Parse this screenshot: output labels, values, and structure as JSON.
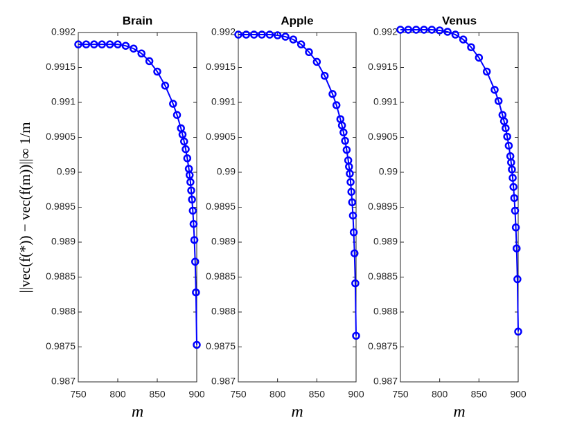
{
  "chart_data": [
    {
      "type": "line",
      "title": "Brain",
      "xlabel": "m",
      "ylabel": "||vec(f(*)) − vec(f(m))||∞ 1/m",
      "x": [
        750,
        760,
        770,
        780,
        790,
        800,
        810,
        820,
        830,
        840,
        850,
        860,
        870,
        875,
        880,
        882,
        884,
        886,
        888,
        890,
        891,
        892,
        893,
        894,
        895,
        896,
        897,
        898,
        899,
        900
      ],
      "values": [
        0.99183,
        0.99183,
        0.99183,
        0.99183,
        0.99183,
        0.99183,
        0.99181,
        0.99177,
        0.9917,
        0.99159,
        0.99144,
        0.99124,
        0.99098,
        0.99082,
        0.99063,
        0.99054,
        0.99044,
        0.99033,
        0.9902,
        0.99005,
        0.98996,
        0.98986,
        0.98974,
        0.98961,
        0.98945,
        0.98926,
        0.98903,
        0.98872,
        0.98828,
        0.98753
      ],
      "color": "#0000ff",
      "marker": "circle",
      "xlim": [
        750,
        900
      ],
      "xticks": [
        750,
        800,
        850,
        900
      ],
      "ylim": [
        0.987,
        0.992
      ],
      "yticks": [
        0.987,
        0.9875,
        0.988,
        0.9885,
        0.989,
        0.9895,
        0.99,
        0.9905,
        0.991,
        0.9915,
        0.992
      ]
    },
    {
      "type": "line",
      "title": "Apple",
      "xlabel": "m",
      "x": [
        750,
        760,
        770,
        780,
        790,
        800,
        810,
        820,
        830,
        840,
        850,
        860,
        870,
        875,
        880,
        882,
        884,
        886,
        888,
        890,
        891,
        892,
        893,
        894,
        895,
        896,
        897,
        898,
        899,
        900
      ],
      "values": [
        0.99197,
        0.99197,
        0.99197,
        0.99197,
        0.99197,
        0.99196,
        0.99194,
        0.9919,
        0.99183,
        0.99172,
        0.99158,
        0.99138,
        0.99112,
        0.99096,
        0.99076,
        0.99067,
        0.99057,
        0.99045,
        0.99032,
        0.99017,
        0.99008,
        0.98998,
        0.98986,
        0.98972,
        0.98957,
        0.98938,
        0.98914,
        0.98884,
        0.98841,
        0.98766
      ],
      "color": "#0000ff",
      "marker": "circle",
      "xlim": [
        750,
        900
      ],
      "xticks": [
        750,
        800,
        850,
        900
      ],
      "ylim": [
        0.987,
        0.992
      ],
      "yticks": [
        0.987,
        0.9875,
        0.988,
        0.9885,
        0.989,
        0.9895,
        0.99,
        0.9905,
        0.991,
        0.9915,
        0.992
      ]
    },
    {
      "type": "line",
      "title": "Venus",
      "xlabel": "m",
      "x": [
        750,
        760,
        770,
        780,
        790,
        800,
        810,
        820,
        830,
        840,
        850,
        860,
        870,
        875,
        880,
        882,
        884,
        886,
        888,
        890,
        891,
        892,
        893,
        894,
        895,
        896,
        897,
        898,
        899,
        900
      ],
      "values": [
        0.99204,
        0.99204,
        0.99204,
        0.99204,
        0.99204,
        0.99203,
        0.99201,
        0.99197,
        0.9919,
        0.99179,
        0.99164,
        0.99144,
        0.99118,
        0.99102,
        0.99082,
        0.99073,
        0.99063,
        0.99051,
        0.99038,
        0.99023,
        0.99014,
        0.99004,
        0.98992,
        0.98979,
        0.98963,
        0.98945,
        0.98921,
        0.98891,
        0.98847,
        0.98772
      ],
      "color": "#0000ff",
      "marker": "circle",
      "xlim": [
        750,
        900
      ],
      "xticks": [
        750,
        800,
        850,
        900
      ],
      "ylim": [
        0.987,
        0.992
      ],
      "yticks": [
        0.987,
        0.9875,
        0.988,
        0.9885,
        0.989,
        0.9895,
        0.99,
        0.9905,
        0.991,
        0.9915,
        0.992
      ]
    }
  ]
}
